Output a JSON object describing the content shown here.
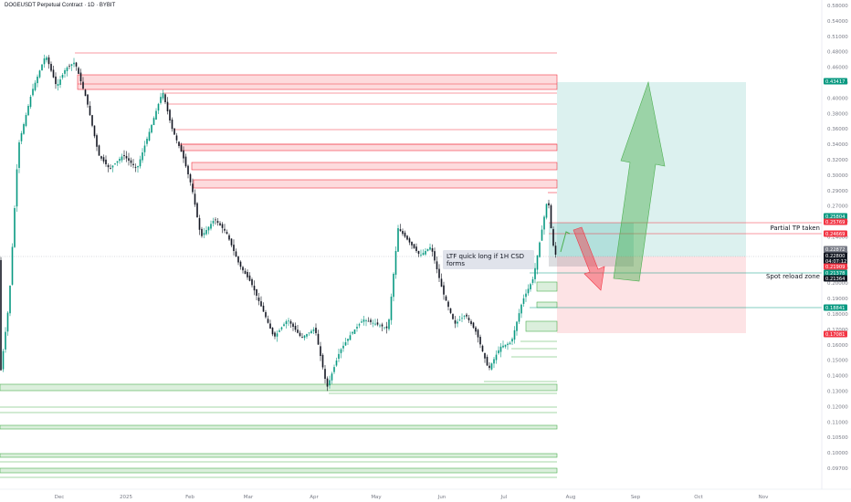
{
  "window": {
    "title": "DOGEUSDT Perpetual Contract · 1D · BYBIT"
  },
  "chart_data": {
    "type": "candlestick",
    "symbol": "DOGEUSDT Perpetual Contract",
    "interval": "1D",
    "exchange": "BYBIT",
    "y_ticks": [
      "0.58000",
      "0.54000",
      "0.51000",
      "0.48000",
      "0.46000",
      "0.42000",
      "0.40000",
      "0.38000",
      "0.36000",
      "0.34000",
      "0.32000",
      "0.30000",
      "0.29000",
      "0.27000",
      "0.26000",
      "0.24000",
      "0.23000",
      "0.22000",
      "0.20000",
      "0.19000",
      "0.18000",
      "0.17000",
      "0.16000",
      "0.15000",
      "0.14000",
      "0.13000",
      "0.12000",
      "0.11000",
      "0.10500",
      "0.10000",
      "0.09700"
    ],
    "x_ticks": [
      "Dec",
      "2025",
      "Feb",
      "Mar",
      "Apr",
      "May",
      "Jun",
      "Jul",
      "Aug",
      "Sep",
      "Oct",
      "Nov"
    ],
    "price_badges": [
      {
        "text": "0.43417",
        "color": "#089981"
      },
      {
        "text": "0.25804",
        "color": "#089981"
      },
      {
        "text": "0.25769",
        "color": "#f23645"
      },
      {
        "text": "0.24669",
        "color": "#f23645"
      },
      {
        "text": "0.22872",
        "color": "#787b86"
      },
      {
        "text": "0.22800",
        "color": "#131722"
      },
      {
        "text": "04:07:12",
        "color": "#131722"
      },
      {
        "text": "0.21909",
        "color": "#f23645"
      },
      {
        "text": "0.21378",
        "color": "#089981"
      },
      {
        "text": "0.21364",
        "color": "#131722"
      },
      {
        "text": "0.18841",
        "color": "#089981"
      },
      {
        "text": "0.17081",
        "color": "#f23645"
      }
    ],
    "annotations": {
      "ltf_note": "LTF quick long if 1H CSD forms",
      "partial_tp": "Partial TP taken",
      "spot_reload": "Spot reload zone"
    },
    "colors": {
      "up": "#089981",
      "down": "#131722",
      "supply": "#f23645",
      "demand": "#4caf50",
      "target": "#26a69a",
      "stop": "#f23645"
    }
  }
}
